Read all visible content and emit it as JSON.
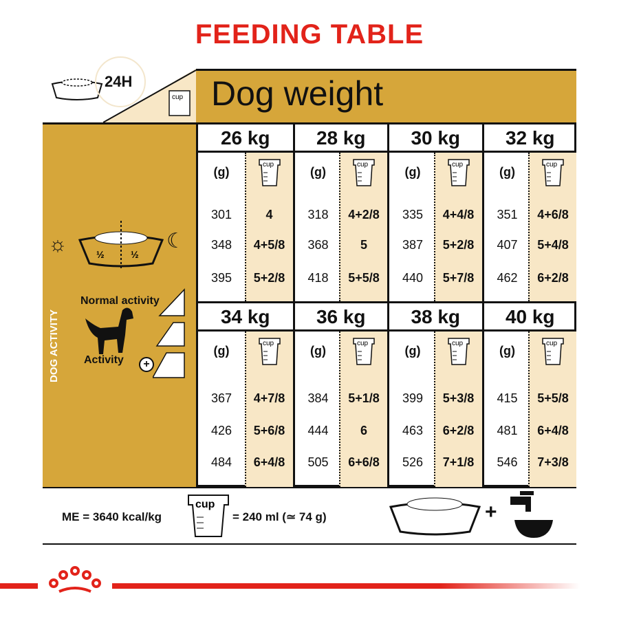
{
  "title": "FEEDING TABLE",
  "period": "24H",
  "header": "Dog weight",
  "cup_label": "cup",
  "gram_label": "(g)",
  "half": "½",
  "activity": {
    "side_label": "DOG ACTIVITY",
    "normal": "Normal activity",
    "high": "Activity"
  },
  "weights": [
    {
      "kg": "26 kg",
      "rows": [
        [
          "301",
          "4"
        ],
        [
          "348",
          "4+5/8"
        ],
        [
          "395",
          "5+2/8"
        ]
      ]
    },
    {
      "kg": "28 kg",
      "rows": [
        [
          "318",
          "4+2/8"
        ],
        [
          "368",
          "5"
        ],
        [
          "418",
          "5+5/8"
        ]
      ]
    },
    {
      "kg": "30 kg",
      "rows": [
        [
          "335",
          "4+4/8"
        ],
        [
          "387",
          "5+2/8"
        ],
        [
          "440",
          "5+7/8"
        ]
      ]
    },
    {
      "kg": "32 kg",
      "rows": [
        [
          "351",
          "4+6/8"
        ],
        [
          "407",
          "5+4/8"
        ],
        [
          "462",
          "6+2/8"
        ]
      ]
    },
    {
      "kg": "34 kg",
      "rows": [
        [
          "367",
          "4+7/8"
        ],
        [
          "426",
          "5+6/8"
        ],
        [
          "484",
          "6+4/8"
        ]
      ]
    },
    {
      "kg": "36 kg",
      "rows": [
        [
          "384",
          "5+1/8"
        ],
        [
          "444",
          "6"
        ],
        [
          "505",
          "6+6/8"
        ]
      ]
    },
    {
      "kg": "38 kg",
      "rows": [
        [
          "399",
          "5+3/8"
        ],
        [
          "463",
          "6+2/8"
        ],
        [
          "526",
          "7+1/8"
        ]
      ]
    },
    {
      "kg": "40 kg",
      "rows": [
        [
          "415",
          "5+5/8"
        ],
        [
          "481",
          "6+4/8"
        ],
        [
          "546",
          "7+3/8"
        ]
      ]
    }
  ],
  "footer": {
    "me": "ME = 3640 kcal/kg",
    "cup_eq": "= 240 ml (≃ 74 g)",
    "plus": "+"
  },
  "colors": {
    "gold": "#d6a63a",
    "cream": "#f8e7c6",
    "red": "#e2231a"
  }
}
